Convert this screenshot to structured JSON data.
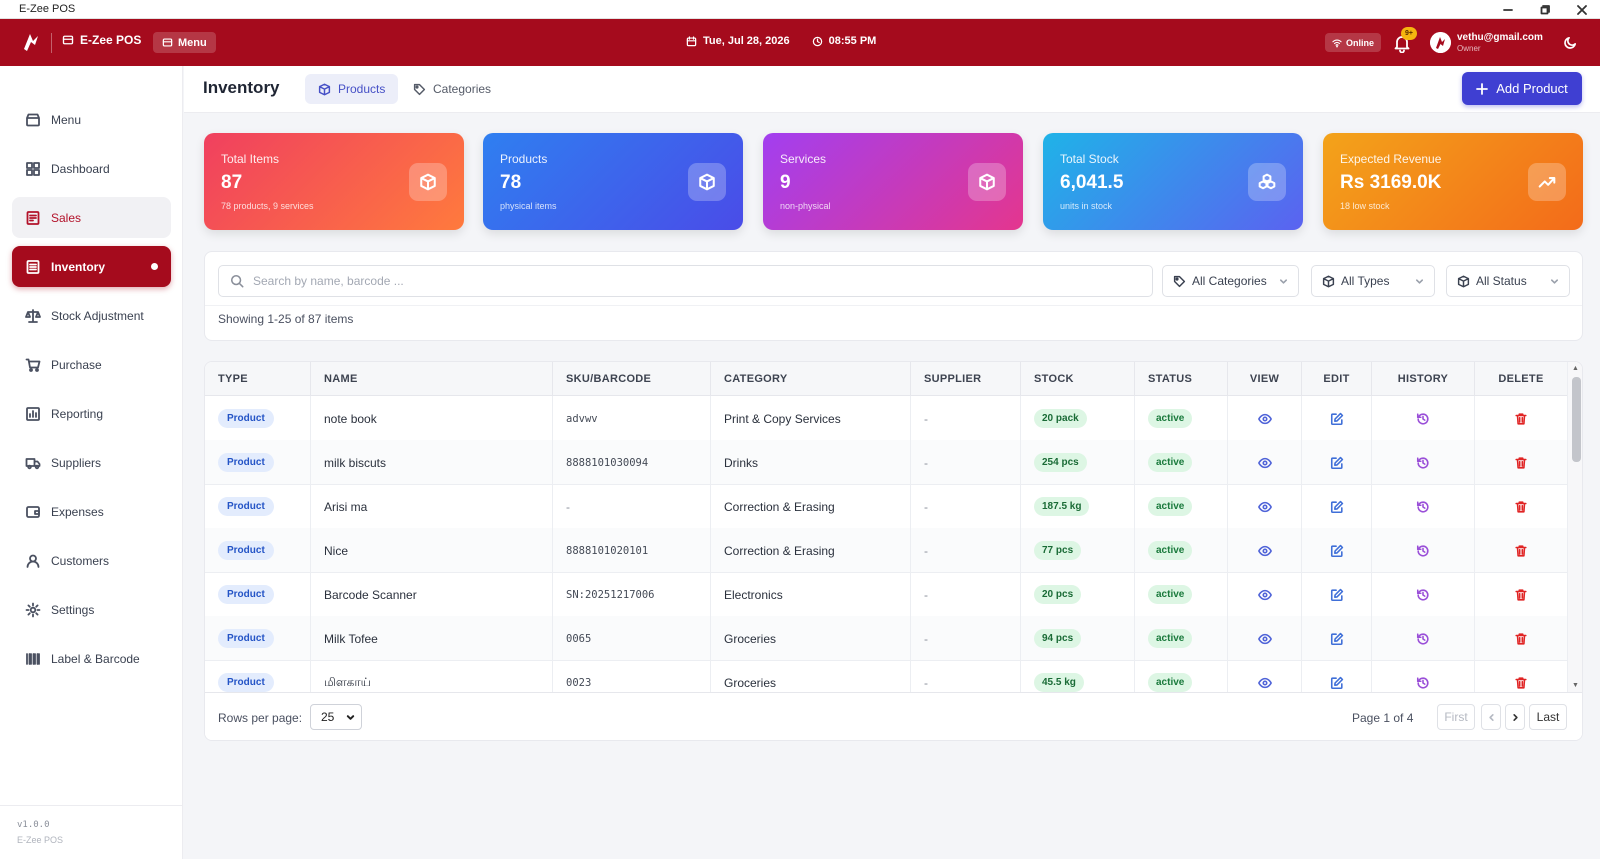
{
  "window": {
    "title": "E-Zee POS"
  },
  "header": {
    "brand": "E-Zee POS",
    "menu_label": "Menu",
    "date": "Tue, Jul 28, 2026",
    "time": "08:55 PM",
    "online_label": "Online",
    "notification_badge": "9+",
    "user_email": "vethu@gmail.com",
    "user_role": "Owner"
  },
  "sidebar": {
    "items": [
      {
        "label": "Menu",
        "icon": "store-icon"
      },
      {
        "label": "Dashboard",
        "icon": "grid-icon"
      },
      {
        "label": "Sales",
        "icon": "receipt-icon"
      },
      {
        "label": "Inventory",
        "icon": "list-icon"
      },
      {
        "label": "Stock Adjustment",
        "icon": "scale-icon"
      },
      {
        "label": "Purchase",
        "icon": "cart-icon"
      },
      {
        "label": "Reporting",
        "icon": "chart-icon"
      },
      {
        "label": "Suppliers",
        "icon": "truck-icon"
      },
      {
        "label": "Expenses",
        "icon": "wallet-icon"
      },
      {
        "label": "Customers",
        "icon": "user-icon"
      },
      {
        "label": "Settings",
        "icon": "gear-icon"
      },
      {
        "label": "Label & Barcode",
        "icon": "barcode-icon"
      }
    ],
    "version": "v1.0.0",
    "app_name": "E-Zee POS"
  },
  "page": {
    "title": "Inventory",
    "tabs": [
      {
        "label": "Products"
      },
      {
        "label": "Categories"
      }
    ],
    "add_button": "Add Product"
  },
  "stats": [
    {
      "label": "Total Items",
      "value": "87",
      "sub": "78 products, 9 services"
    },
    {
      "label": "Products",
      "value": "78",
      "sub": "physical items"
    },
    {
      "label": "Services",
      "value": "9",
      "sub": "non-physical"
    },
    {
      "label": "Total Stock",
      "value": "6,041.5",
      "sub": "units in stock"
    },
    {
      "label": "Expected Revenue",
      "value": "Rs 3169.0K",
      "sub": "18 low stock"
    }
  ],
  "filters": {
    "search_placeholder": "Search by name, barcode ...",
    "category": "All Categories",
    "type": "All Types",
    "status": "All Status",
    "showing": "Showing 1-25 of 87 items"
  },
  "table": {
    "columns": [
      "TYPE",
      "NAME",
      "SKU/BARCODE",
      "CATEGORY",
      "SUPPLIER",
      "STOCK",
      "STATUS",
      "VIEW",
      "EDIT",
      "HISTORY",
      "DELETE"
    ],
    "rows": [
      {
        "type": "Product",
        "name": "note book",
        "sku": "advwv",
        "category": "Print & Copy Services",
        "supplier": "-",
        "stock": "20 pack",
        "status": "active"
      },
      {
        "type": "Product",
        "name": "milk biscuts",
        "sku": "8888101030094",
        "category": "Drinks",
        "supplier": "-",
        "stock": "254 pcs",
        "status": "active"
      },
      {
        "type": "Product",
        "name": "Arisi ma",
        "sku": "-",
        "category": "Correction & Erasing",
        "supplier": "-",
        "stock": "187.5 kg",
        "status": "active"
      },
      {
        "type": "Product",
        "name": "Nice",
        "sku": "8888101020101",
        "category": "Correction & Erasing",
        "supplier": "-",
        "stock": "77 pcs",
        "status": "active"
      },
      {
        "type": "Product",
        "name": "Barcode Scanner",
        "sku": "SN:20251217006",
        "category": "Electronics",
        "supplier": "-",
        "stock": "20 pcs",
        "status": "active"
      },
      {
        "type": "Product",
        "name": "Milk Tofee",
        "sku": "0065",
        "category": "Groceries",
        "supplier": "-",
        "stock": "94 pcs",
        "status": "active"
      },
      {
        "type": "Product",
        "name": "மிளகாய்",
        "sku": "0023",
        "category": "Groceries",
        "supplier": "-",
        "stock": "45.5 kg",
        "status": "active"
      }
    ]
  },
  "pagination": {
    "rows_per_page_label": "Rows per page:",
    "rows_per_page": "25",
    "page_info": "Page 1 of 4",
    "first": "First",
    "last": "Last"
  },
  "colors": {
    "brand": "#a50b1d",
    "accent": "#3f3fd2"
  }
}
